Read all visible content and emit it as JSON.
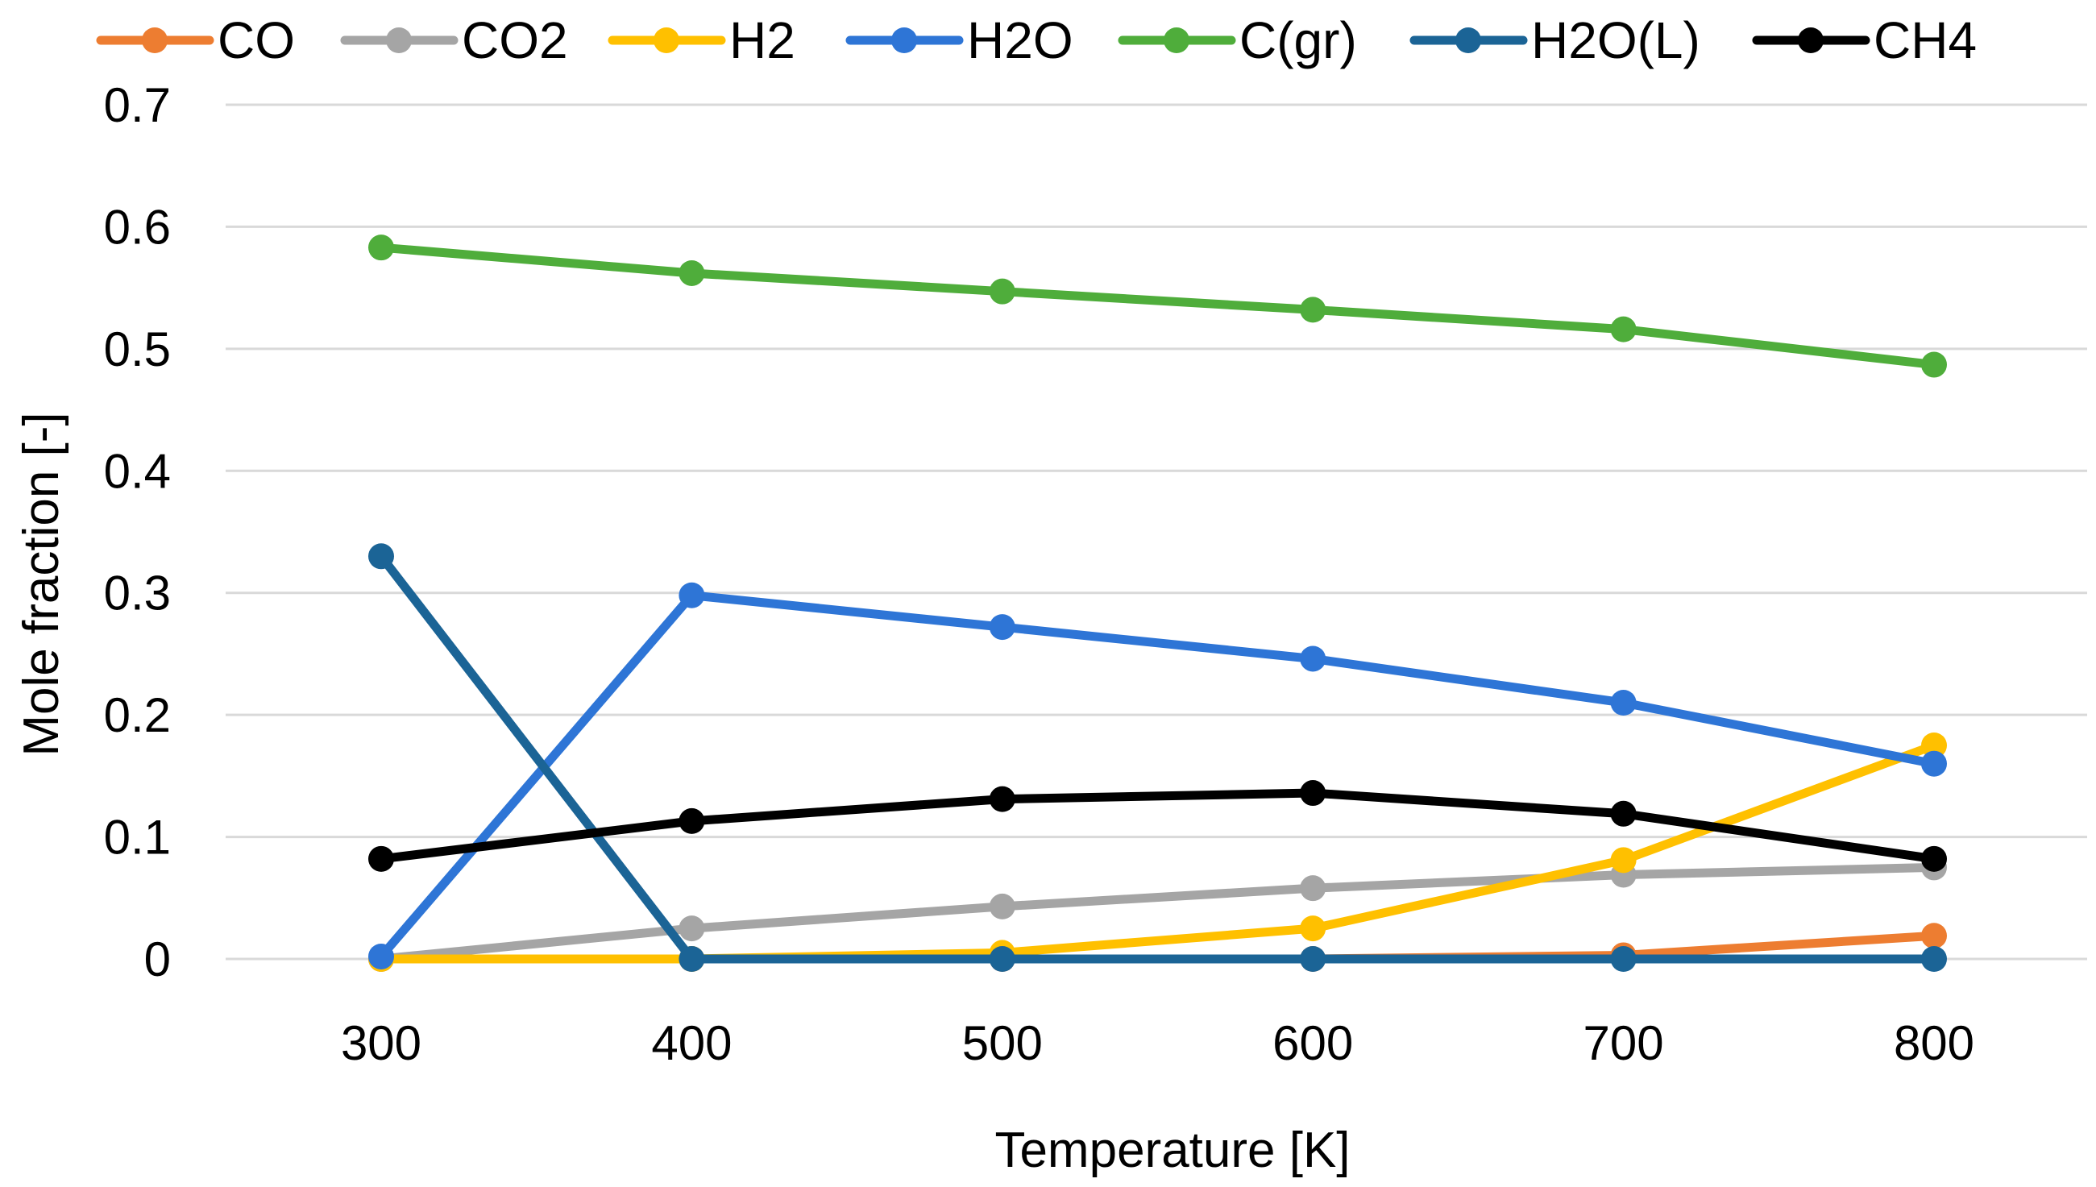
{
  "chart_data": {
    "type": "line",
    "xlabel": "Temperature [K]",
    "ylabel": "Mole fraction [-]",
    "x": [
      300,
      400,
      500,
      600,
      700,
      800
    ],
    "x_tick_labels": [
      "300",
      "400",
      "500",
      "600",
      "700",
      "800"
    ],
    "ylim": [
      0,
      0.7
    ],
    "y_tick_labels": [
      "0",
      "0.1",
      "0.2",
      "0.3",
      "0.4",
      "0.5",
      "0.6",
      "0.7"
    ],
    "grid": "horizontal",
    "legend_position": "top",
    "series": [
      {
        "name": "CO",
        "color": "#ED7D31",
        "values": [
          0,
          0,
          0,
          0,
          0.003,
          0.019
        ]
      },
      {
        "name": "CO2",
        "color": "#A5A5A5",
        "values": [
          0,
          0.025,
          0.043,
          0.058,
          0.069,
          0.075
        ]
      },
      {
        "name": "H2",
        "color": "#FFC000",
        "values": [
          0,
          0,
          0.005,
          0.025,
          0.081,
          0.175
        ]
      },
      {
        "name": "H2O",
        "color": "#2E75D6",
        "values": [
          0.002,
          0.298,
          0.272,
          0.246,
          0.21,
          0.16
        ]
      },
      {
        "name": "C(gr)",
        "color": "#4FAD3B",
        "values": [
          0.583,
          0.562,
          0.547,
          0.532,
          0.516,
          0.487
        ]
      },
      {
        "name": "H2O(L)",
        "color": "#1B6496",
        "values": [
          0.33,
          0,
          0,
          0,
          0,
          0
        ]
      },
      {
        "name": "CH4",
        "color": "#000000",
        "values": [
          0.082,
          0.113,
          0.131,
          0.136,
          0.119,
          0.082
        ]
      }
    ]
  }
}
